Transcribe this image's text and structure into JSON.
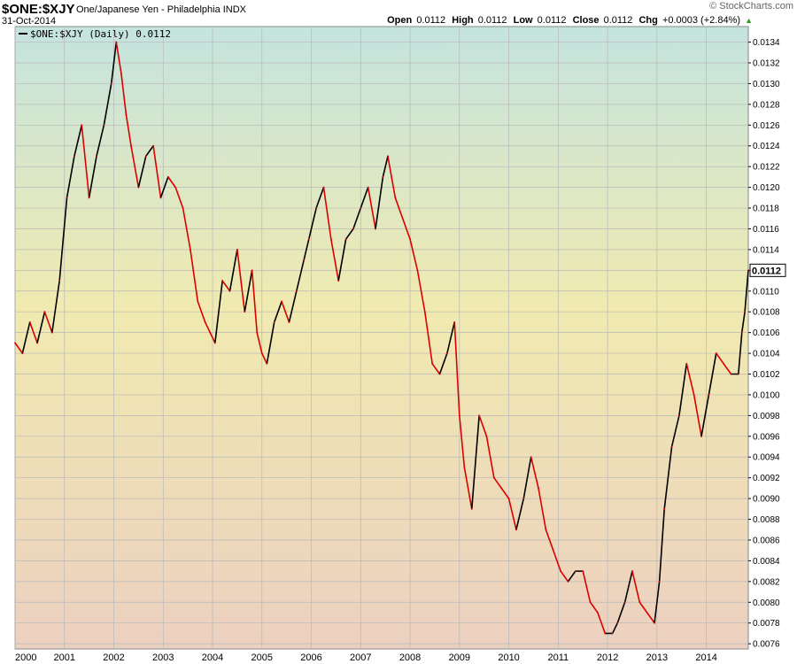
{
  "header": {
    "symbol": "$ONE:$XJY",
    "description": "One/Japanese Yen - Philadelphia INDX",
    "date": "31-Oct-2014",
    "brand": "© StockCharts.com",
    "open_label": "Open",
    "open_value": "0.0112",
    "high_label": "High",
    "high_value": "0.0112",
    "low_label": "Low",
    "low_value": "0.0112",
    "close_label": "Close",
    "close_value": "0.0112",
    "chg_label": "Chg",
    "chg_value": "+0.0003 (+2.84%)"
  },
  "colors": {
    "line_up": "#000000",
    "line_down": "#dd0000",
    "grid": "#b8b8b8",
    "bg_top": "#c4e4df",
    "bg_mid": "#f0eab0",
    "bg_bottom": "#ecd0c0"
  },
  "chart_data": {
    "type": "line",
    "title": "$ONE:$XJY",
    "legend": "$ONE:$XJY (Daily) 0.0112",
    "legend_position": "top-left",
    "last_value_label": "0.0112",
    "xlabel": "",
    "ylabel": "",
    "ylim": [
      0.00755,
      0.01355
    ],
    "xlim": [
      2000.0,
      2014.85
    ],
    "grid": true,
    "y_ticks": [
      "0.0076",
      "0.0078",
      "0.0080",
      "0.0082",
      "0.0084",
      "0.0086",
      "0.0088",
      "0.0090",
      "0.0092",
      "0.0094",
      "0.0096",
      "0.0098",
      "0.0100",
      "0.0102",
      "0.0104",
      "0.0106",
      "0.0108",
      "0.0110",
      "0.0112",
      "0.0114",
      "0.0116",
      "0.0118",
      "0.0120",
      "0.0122",
      "0.0124",
      "0.0126",
      "0.0128",
      "0.0130",
      "0.0132",
      "0.0134"
    ],
    "x_ticks": [
      {
        "label": "2000",
        "x": 2000
      },
      {
        "label": "2001",
        "x": 2001
      },
      {
        "label": "2002",
        "x": 2002
      },
      {
        "label": "2003",
        "x": 2003
      },
      {
        "label": "2004",
        "x": 2004
      },
      {
        "label": "2005",
        "x": 2005
      },
      {
        "label": "2006",
        "x": 2006
      },
      {
        "label": "2007",
        "x": 2007
      },
      {
        "label": "2008",
        "x": 2008
      },
      {
        "label": "2009",
        "x": 2009
      },
      {
        "label": "2010",
        "x": 2010
      },
      {
        "label": "2011",
        "x": 2011
      },
      {
        "label": "2012",
        "x": 2012
      },
      {
        "label": "2013",
        "x": 2013
      },
      {
        "label": "2014",
        "x": 2014
      }
    ],
    "series": [
      {
        "name": "$ONE:$XJY",
        "x": [
          2000.0,
          2000.15,
          2000.3,
          2000.45,
          2000.6,
          2000.75,
          2000.9,
          2001.05,
          2001.2,
          2001.35,
          2001.5,
          2001.65,
          2001.8,
          2001.95,
          2002.05,
          2002.15,
          2002.25,
          2002.35,
          2002.5,
          2002.65,
          2002.8,
          2002.95,
          2003.1,
          2003.25,
          2003.4,
          2003.55,
          2003.7,
          2003.85,
          2003.95,
          2004.05,
          2004.2,
          2004.35,
          2004.5,
          2004.65,
          2004.8,
          2004.9,
          2005.0,
          2005.1,
          2005.25,
          2005.4,
          2005.55,
          2005.7,
          2005.85,
          2005.95,
          2006.1,
          2006.25,
          2006.4,
          2006.55,
          2006.7,
          2006.85,
          2007.0,
          2007.15,
          2007.3,
          2007.45,
          2007.55,
          2007.7,
          2007.85,
          2008.0,
          2008.15,
          2008.3,
          2008.45,
          2008.6,
          2008.75,
          2008.9,
          2009.0,
          2009.1,
          2009.25,
          2009.4,
          2009.55,
          2009.7,
          2009.85,
          2010.0,
          2010.15,
          2010.3,
          2010.45,
          2010.6,
          2010.75,
          2010.9,
          2011.05,
          2011.2,
          2011.35,
          2011.5,
          2011.65,
          2011.8,
          2011.95,
          2012.1,
          2012.2,
          2012.35,
          2012.5,
          2012.65,
          2012.8,
          2012.95,
          2013.05,
          2013.15,
          2013.3,
          2013.45,
          2013.6,
          2013.75,
          2013.9,
          2014.05,
          2014.2,
          2014.35,
          2014.5,
          2014.65,
          2014.72,
          2014.78,
          2014.85
        ],
        "y": [
          0.0105,
          0.0104,
          0.0107,
          0.0105,
          0.0108,
          0.0106,
          0.0111,
          0.0119,
          0.0123,
          0.0126,
          0.0119,
          0.0123,
          0.0126,
          0.013,
          0.0134,
          0.0131,
          0.0127,
          0.0124,
          0.012,
          0.0123,
          0.0124,
          0.0119,
          0.0121,
          0.012,
          0.0118,
          0.0114,
          0.0109,
          0.0107,
          0.0106,
          0.0105,
          0.0111,
          0.011,
          0.0114,
          0.0108,
          0.0112,
          0.0106,
          0.0104,
          0.0103,
          0.0107,
          0.0109,
          0.0107,
          0.011,
          0.0113,
          0.0115,
          0.0118,
          0.012,
          0.0115,
          0.0111,
          0.0115,
          0.0116,
          0.0118,
          0.012,
          0.0116,
          0.0121,
          0.0123,
          0.0119,
          0.0117,
          0.0115,
          0.0112,
          0.0108,
          0.0103,
          0.0102,
          0.0104,
          0.0107,
          0.0098,
          0.0093,
          0.0089,
          0.0098,
          0.0096,
          0.0092,
          0.0091,
          0.009,
          0.0087,
          0.009,
          0.0094,
          0.0091,
          0.0087,
          0.0085,
          0.0083,
          0.0082,
          0.0083,
          0.0083,
          0.008,
          0.0079,
          0.0077,
          0.0077,
          0.0078,
          0.008,
          0.0083,
          0.008,
          0.0079,
          0.0078,
          0.0082,
          0.0089,
          0.0095,
          0.0098,
          0.0103,
          0.01,
          0.0096,
          0.01,
          0.0104,
          0.0103,
          0.0102,
          0.0102,
          0.0106,
          0.0108,
          0.0112
        ]
      }
    ]
  }
}
